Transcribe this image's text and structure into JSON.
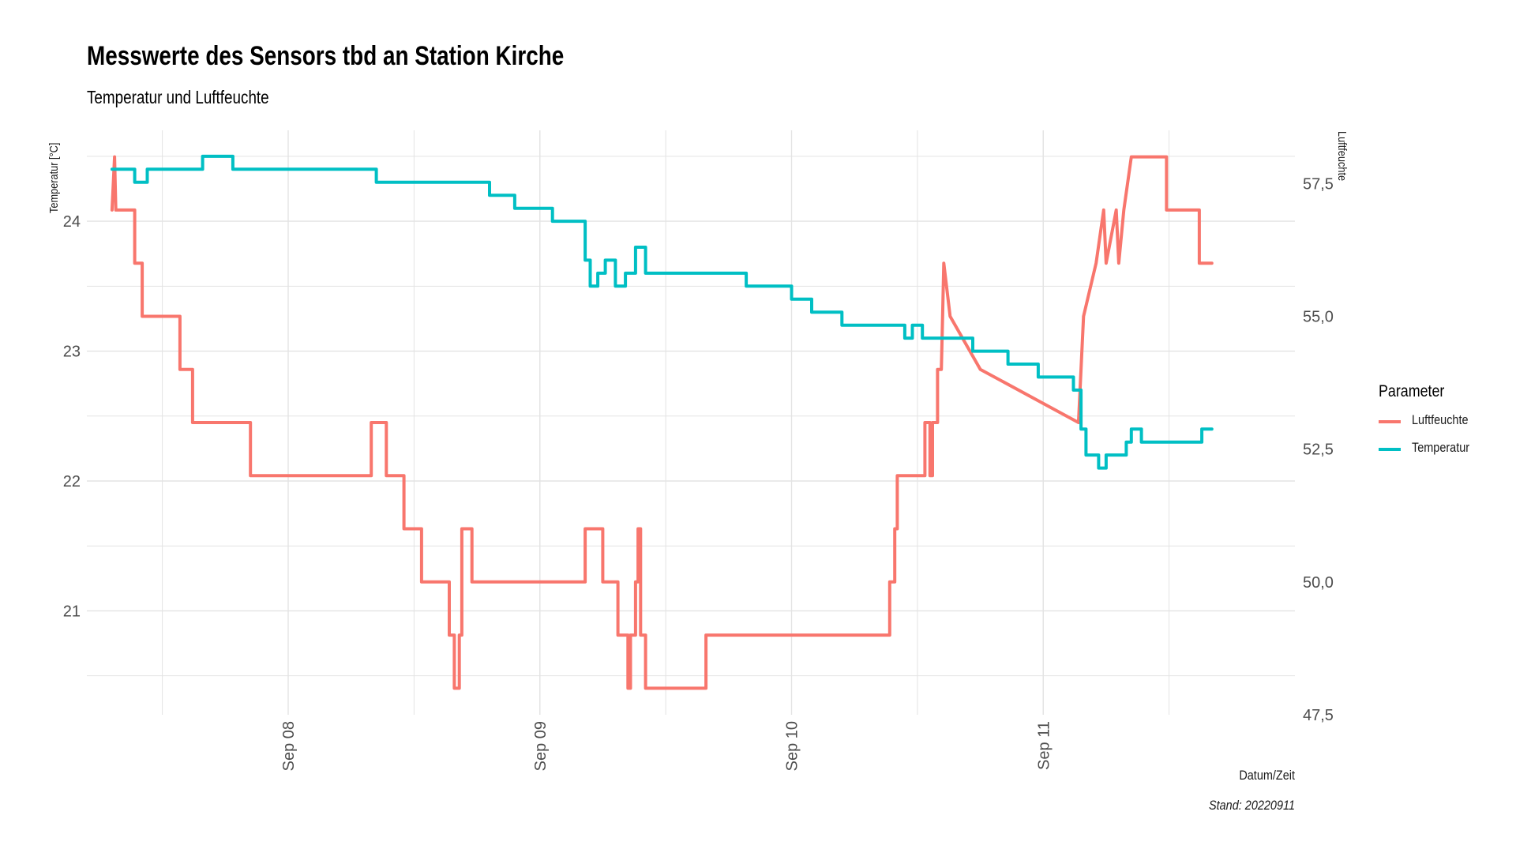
{
  "title": "Messwerte des Sensors tbd an Station Kirche",
  "subtitle": "Temperatur und Luftfeuchte",
  "caption": "Stand: 20220911",
  "chart_data": {
    "type": "line",
    "xlabel": "Datum/Zeit",
    "ylabel": "Temperatur [°C]",
    "y2label": "Luftfeuchte",
    "x_ticks": [
      "Sep 08",
      "Sep 09",
      "Sep 10",
      "Sep 11"
    ],
    "x_tick_values": [
      8.0,
      9.0,
      10.0,
      11.0
    ],
    "xlim": [
      7.2,
      12.0
    ],
    "ylim": [
      20.2,
      24.7
    ],
    "y_ticks": [
      21,
      22,
      23,
      24
    ],
    "y_tick_labels": [
      "21",
      "22",
      "23",
      "24"
    ],
    "y2lim": [
      47.5,
      58.5
    ],
    "y2_ticks": [
      47.5,
      50.0,
      52.5,
      55.0,
      57.5
    ],
    "y2_tick_labels": [
      "47,5",
      "50,0",
      "52,5",
      "55,0",
      "57,5"
    ],
    "grid": true,
    "legend_title": "Parameter",
    "legend_position": "right",
    "series": [
      {
        "name": "Luftfeuchte",
        "axis": "right",
        "color": "#F8766D",
        "x": [
          7.3,
          7.31,
          7.315,
          7.32,
          7.39,
          7.39,
          7.42,
          7.42,
          7.57,
          7.57,
          7.62,
          7.62,
          7.85,
          7.85,
          8.33,
          8.33,
          8.39,
          8.39,
          8.46,
          8.46,
          8.53,
          8.53,
          8.64,
          8.64,
          8.66,
          8.66,
          8.68,
          8.68,
          8.69,
          8.69,
          8.73,
          8.73,
          9.18,
          9.18,
          9.25,
          9.25,
          9.31,
          9.31,
          9.35,
          9.35,
          9.36,
          9.36,
          9.38,
          9.38,
          9.39,
          9.39,
          9.4,
          9.4,
          9.42,
          9.42,
          9.66,
          9.66,
          10.39,
          10.39,
          10.41,
          10.41,
          10.42,
          10.42,
          10.53,
          10.53,
          10.55,
          10.55,
          10.56,
          10.56,
          10.58,
          10.58,
          10.595,
          10.6,
          10.605,
          10.63,
          10.63,
          10.75,
          10.75,
          11.14,
          11.14,
          11.16,
          11.16,
          11.21,
          11.21,
          11.24,
          11.24,
          11.25,
          11.25,
          11.29,
          11.29,
          11.3,
          11.3,
          11.32,
          11.32,
          11.35,
          11.35,
          11.49,
          11.49,
          11.62,
          11.62,
          11.67
        ],
        "y": [
          57.0,
          58.0,
          57.0,
          57.0,
          57.0,
          56.0,
          56.0,
          55.0,
          55.0,
          54.0,
          54.0,
          53.0,
          53.0,
          52.0,
          52.0,
          53.0,
          53.0,
          52.0,
          52.0,
          51.0,
          51.0,
          50.0,
          50.0,
          49.0,
          49.0,
          48.0,
          48.0,
          49.0,
          49.0,
          51.0,
          51.0,
          50.0,
          50.0,
          51.0,
          51.0,
          50.0,
          50.0,
          49.0,
          49.0,
          48.0,
          48.0,
          49.0,
          49.0,
          50.0,
          50.0,
          51.0,
          51.0,
          49.0,
          49.0,
          48.0,
          48.0,
          49.0,
          49.0,
          50.0,
          50.0,
          51.0,
          51.0,
          52.0,
          52.0,
          53.0,
          53.0,
          52.0,
          52.0,
          53.0,
          53.0,
          54.0,
          54.0,
          55.0,
          56.0,
          55.0,
          55.0,
          54.0,
          54.0,
          53.0,
          53.0,
          55.0,
          55.0,
          56.0,
          56.0,
          57.0,
          57.0,
          56.0,
          56.0,
          57.0,
          57.0,
          56.0,
          56.0,
          57.0,
          57.0,
          58.0,
          58.0,
          58.0,
          57.0,
          57.0,
          56.0,
          56.0
        ]
      },
      {
        "name": "Temperatur",
        "axis": "left",
        "color": "#00BFC4",
        "x": [
          7.3,
          7.39,
          7.39,
          7.44,
          7.44,
          7.66,
          7.66,
          7.78,
          7.78,
          7.92,
          7.92,
          8.35,
          8.35,
          8.65,
          8.65,
          8.8,
          8.8,
          8.9,
          8.9,
          9.05,
          9.05,
          9.18,
          9.18,
          9.2,
          9.2,
          9.23,
          9.23,
          9.26,
          9.26,
          9.3,
          9.3,
          9.34,
          9.34,
          9.38,
          9.38,
          9.42,
          9.42,
          9.7,
          9.7,
          9.82,
          9.82,
          10.0,
          10.0,
          10.08,
          10.08,
          10.2,
          10.2,
          10.45,
          10.45,
          10.48,
          10.48,
          10.52,
          10.52,
          10.72,
          10.72,
          10.86,
          10.86,
          10.98,
          10.98,
          11.12,
          11.12,
          11.15,
          11.15,
          11.17,
          11.17,
          11.22,
          11.22,
          11.25,
          11.25,
          11.33,
          11.33,
          11.35,
          11.35,
          11.39,
          11.39,
          11.46,
          11.46,
          11.63,
          11.63,
          11.67
        ],
        "y": [
          24.4,
          24.4,
          24.3,
          24.3,
          24.4,
          24.4,
          24.5,
          24.5,
          24.4,
          24.4,
          24.4,
          24.4,
          24.3,
          24.3,
          24.3,
          24.3,
          24.2,
          24.2,
          24.1,
          24.1,
          24.0,
          24.0,
          23.7,
          23.7,
          23.5,
          23.5,
          23.6,
          23.6,
          23.7,
          23.7,
          23.5,
          23.5,
          23.6,
          23.6,
          23.8,
          23.8,
          23.6,
          23.6,
          23.6,
          23.6,
          23.5,
          23.5,
          23.4,
          23.4,
          23.3,
          23.3,
          23.2,
          23.2,
          23.1,
          23.1,
          23.2,
          23.2,
          23.1,
          23.1,
          23.0,
          23.0,
          22.9,
          22.9,
          22.8,
          22.8,
          22.7,
          22.7,
          22.4,
          22.4,
          22.2,
          22.2,
          22.1,
          22.1,
          22.2,
          22.2,
          22.3,
          22.3,
          22.4,
          22.4,
          22.3,
          22.3,
          22.3,
          22.3,
          22.4,
          22.4
        ]
      }
    ]
  }
}
